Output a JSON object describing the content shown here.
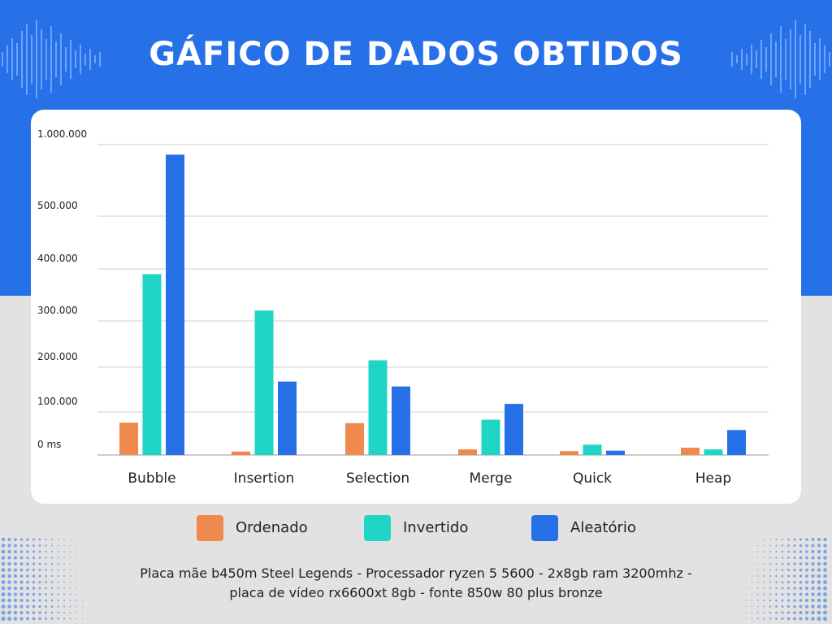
{
  "title": "GÁFICO DE DADOS OBTIDOS",
  "chart_data": {
    "type": "bar",
    "categories": [
      "Bubble",
      "Insertion",
      "Selection",
      "Merge",
      "Quick",
      "Heap"
    ],
    "series": [
      {
        "name": "Ordenado",
        "color": "#f0894e",
        "values": [
          75000,
          8000,
          74000,
          13000,
          9000,
          17000
        ]
      },
      {
        "name": "Invertido",
        "color": "#1fd6c6",
        "values": [
          390000,
          320000,
          215000,
          82000,
          24000,
          13000
        ]
      },
      {
        "name": "Aleatório",
        "color": "#2670e8",
        "values": [
          930000,
          168000,
          157000,
          118000,
          10000,
          58000
        ]
      }
    ],
    "ytick_labels": [
      "0 ms",
      "100.000",
      "200.000",
      "300.000",
      "400.000",
      "500.000",
      "1.000.000"
    ],
    "ytick_values": [
      0,
      100000,
      200000,
      300000,
      400000,
      500000,
      1000000
    ],
    "ylim": [
      0,
      1000000
    ],
    "y_scale": "non-linear (broken between 500.000 and 1.000.000)",
    "grid": true,
    "legend_position": "bottom"
  },
  "legend": [
    {
      "label": "Ordenado",
      "color": "#f0894e"
    },
    {
      "label": "Invertido",
      "color": "#1fd6c6"
    },
    {
      "label": "Aleatório",
      "color": "#2670e8"
    }
  ],
  "footer": {
    "line1": "Placa mãe b450m Steel Legends - Processador ryzen 5 5600 - 2x8gb ram 3200mhz -",
    "line2": "placa de vídeo rx6600xt 8gb - fonte 850w 80 plus bronze"
  }
}
